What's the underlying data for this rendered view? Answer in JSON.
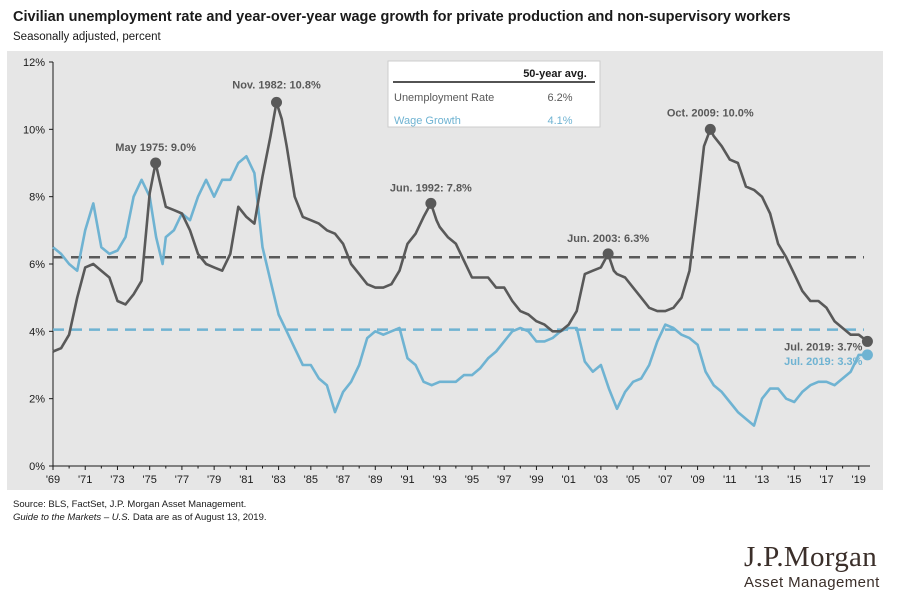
{
  "header": {
    "title": "Civilian unemployment rate and year-over-year wage growth for private production and non-supervisory workers",
    "subtitle": "Seasonally adjusted, percent"
  },
  "footer": {
    "source": "Source: BLS, FactSet, J.P. Morgan Asset Management.",
    "guide_italic": "Guide to the Markets – U.S.",
    "guide_rest": " Data are as of August 13, 2019."
  },
  "logo": {
    "line1": "J.P.Morgan",
    "line2": "Asset Management"
  },
  "colors": {
    "unemployment": "#595959",
    "wage": "#6fb3d2",
    "background": "#e6e6e6"
  },
  "chart_data": {
    "type": "line",
    "ylim": [
      0,
      12
    ],
    "xlim": [
      1969.0,
      2019.7
    ],
    "yticks": [
      "0%",
      "2%",
      "4%",
      "6%",
      "8%",
      "10%",
      "12%"
    ],
    "xticks": [
      "'69",
      "'71",
      "'73",
      "'75",
      "'77",
      "'79",
      "'81",
      "'83",
      "'85",
      "'87",
      "'89",
      "'91",
      "'93",
      "'95",
      "'97",
      "'99",
      "'01",
      "'03",
      "'05",
      "'07",
      "'09",
      "'11",
      "'13",
      "'15",
      "'17",
      "'19"
    ],
    "legend": {
      "header": "50-year avg.",
      "rows": [
        {
          "label": "Unemployment Rate",
          "value": "6.2%"
        },
        {
          "label": "Wage Growth",
          "value": "4.1%"
        }
      ]
    },
    "averages": {
      "unemployment": 6.2,
      "wage": 4.05
    },
    "annotations": [
      {
        "label": "May 1975: 9.0%",
        "x": 1975.37,
        "y": 9.0,
        "series": "unemployment"
      },
      {
        "label": "Nov. 1982: 10.8%",
        "x": 1982.87,
        "y": 10.8,
        "series": "unemployment"
      },
      {
        "label": "Jun. 1992: 7.8%",
        "x": 1992.45,
        "y": 7.8,
        "series": "unemployment"
      },
      {
        "label": "Jun. 2003: 6.3%",
        "x": 2003.45,
        "y": 6.3,
        "series": "unemployment"
      },
      {
        "label": "Oct. 2009: 10.0%",
        "x": 2009.79,
        "y": 10.0,
        "series": "unemployment"
      },
      {
        "label": "Jul. 2019: 3.7%",
        "x": 2019.54,
        "y": 3.7,
        "series": "unemployment"
      },
      {
        "label": "Jul. 2019: 3.3%",
        "x": 2019.54,
        "y": 3.3,
        "series": "wage"
      }
    ],
    "series": [
      {
        "name": "Unemployment Rate",
        "points": [
          [
            1969.0,
            3.4
          ],
          [
            1969.5,
            3.5
          ],
          [
            1970.0,
            3.9
          ],
          [
            1970.5,
            5.0
          ],
          [
            1971.0,
            5.9
          ],
          [
            1971.5,
            6.0
          ],
          [
            1972.0,
            5.8
          ],
          [
            1972.5,
            5.6
          ],
          [
            1973.0,
            4.9
          ],
          [
            1973.5,
            4.8
          ],
          [
            1974.0,
            5.1
          ],
          [
            1974.5,
            5.5
          ],
          [
            1975.0,
            8.1
          ],
          [
            1975.37,
            9.0
          ],
          [
            1975.6,
            8.5
          ],
          [
            1976.0,
            7.7
          ],
          [
            1976.5,
            7.6
          ],
          [
            1977.0,
            7.5
          ],
          [
            1977.5,
            7.0
          ],
          [
            1978.0,
            6.3
          ],
          [
            1978.5,
            6.0
          ],
          [
            1979.0,
            5.9
          ],
          [
            1979.5,
            5.8
          ],
          [
            1980.0,
            6.3
          ],
          [
            1980.5,
            7.7
          ],
          [
            1981.0,
            7.4
          ],
          [
            1981.5,
            7.2
          ],
          [
            1982.0,
            8.6
          ],
          [
            1982.5,
            9.8
          ],
          [
            1982.87,
            10.8
          ],
          [
            1983.2,
            10.3
          ],
          [
            1983.5,
            9.5
          ],
          [
            1984.0,
            8.0
          ],
          [
            1984.5,
            7.4
          ],
          [
            1985.0,
            7.3
          ],
          [
            1985.5,
            7.2
          ],
          [
            1986.0,
            7.0
          ],
          [
            1986.5,
            6.9
          ],
          [
            1987.0,
            6.6
          ],
          [
            1987.5,
            6.0
          ],
          [
            1988.0,
            5.7
          ],
          [
            1988.5,
            5.4
          ],
          [
            1989.0,
            5.3
          ],
          [
            1989.5,
            5.3
          ],
          [
            1990.0,
            5.4
          ],
          [
            1990.5,
            5.8
          ],
          [
            1991.0,
            6.6
          ],
          [
            1991.5,
            6.9
          ],
          [
            1992.0,
            7.4
          ],
          [
            1992.45,
            7.8
          ],
          [
            1992.8,
            7.3
          ],
          [
            1993.0,
            7.1
          ],
          [
            1993.5,
            6.8
          ],
          [
            1994.0,
            6.6
          ],
          [
            1994.5,
            6.1
          ],
          [
            1995.0,
            5.6
          ],
          [
            1995.5,
            5.6
          ],
          [
            1996.0,
            5.6
          ],
          [
            1996.5,
            5.3
          ],
          [
            1997.0,
            5.3
          ],
          [
            1997.5,
            4.9
          ],
          [
            1998.0,
            4.6
          ],
          [
            1998.5,
            4.5
          ],
          [
            1999.0,
            4.3
          ],
          [
            1999.5,
            4.2
          ],
          [
            2000.0,
            4.0
          ],
          [
            2000.5,
            4.0
          ],
          [
            2001.0,
            4.2
          ],
          [
            2001.5,
            4.6
          ],
          [
            2002.0,
            5.7
          ],
          [
            2002.5,
            5.8
          ],
          [
            2003.0,
            5.9
          ],
          [
            2003.45,
            6.3
          ],
          [
            2003.8,
            5.8
          ],
          [
            2004.0,
            5.7
          ],
          [
            2004.5,
            5.6
          ],
          [
            2005.0,
            5.3
          ],
          [
            2005.5,
            5.0
          ],
          [
            2006.0,
            4.7
          ],
          [
            2006.5,
            4.6
          ],
          [
            2007.0,
            4.6
          ],
          [
            2007.5,
            4.7
          ],
          [
            2008.0,
            5.0
          ],
          [
            2008.5,
            5.8
          ],
          [
            2009.0,
            7.8
          ],
          [
            2009.4,
            9.5
          ],
          [
            2009.79,
            10.0
          ],
          [
            2010.0,
            9.8
          ],
          [
            2010.5,
            9.5
          ],
          [
            2011.0,
            9.1
          ],
          [
            2011.5,
            9.0
          ],
          [
            2012.0,
            8.3
          ],
          [
            2012.5,
            8.2
          ],
          [
            2013.0,
            8.0
          ],
          [
            2013.5,
            7.5
          ],
          [
            2014.0,
            6.6
          ],
          [
            2014.5,
            6.2
          ],
          [
            2015.0,
            5.7
          ],
          [
            2015.5,
            5.2
          ],
          [
            2016.0,
            4.9
          ],
          [
            2016.5,
            4.9
          ],
          [
            2017.0,
            4.7
          ],
          [
            2017.5,
            4.3
          ],
          [
            2018.0,
            4.1
          ],
          [
            2018.5,
            3.9
          ],
          [
            2019.0,
            3.9
          ],
          [
            2019.54,
            3.7
          ]
        ]
      },
      {
        "name": "Wage Growth",
        "points": [
          [
            1969.0,
            6.5
          ],
          [
            1969.5,
            6.3
          ],
          [
            1970.0,
            6.0
          ],
          [
            1970.5,
            5.8
          ],
          [
            1971.0,
            7.0
          ],
          [
            1971.5,
            7.8
          ],
          [
            1972.0,
            6.5
          ],
          [
            1972.5,
            6.3
          ],
          [
            1973.0,
            6.4
          ],
          [
            1973.5,
            6.8
          ],
          [
            1974.0,
            8.0
          ],
          [
            1974.5,
            8.5
          ],
          [
            1975.0,
            8.0
          ],
          [
            1975.4,
            6.8
          ],
          [
            1975.8,
            6.0
          ],
          [
            1976.0,
            6.8
          ],
          [
            1976.5,
            7.0
          ],
          [
            1977.0,
            7.5
          ],
          [
            1977.5,
            7.3
          ],
          [
            1978.0,
            8.0
          ],
          [
            1978.5,
            8.5
          ],
          [
            1979.0,
            8.0
          ],
          [
            1979.5,
            8.5
          ],
          [
            1980.0,
            8.5
          ],
          [
            1980.5,
            9.0
          ],
          [
            1981.0,
            9.2
          ],
          [
            1981.5,
            8.7
          ],
          [
            1982.0,
            6.5
          ],
          [
            1982.5,
            5.5
          ],
          [
            1983.0,
            4.5
          ],
          [
            1983.5,
            4.0
          ],
          [
            1984.0,
            3.5
          ],
          [
            1984.5,
            3.0
          ],
          [
            1985.0,
            3.0
          ],
          [
            1985.5,
            2.6
          ],
          [
            1986.0,
            2.4
          ],
          [
            1986.5,
            1.6
          ],
          [
            1987.0,
            2.2
          ],
          [
            1987.5,
            2.5
          ],
          [
            1988.0,
            3.0
          ],
          [
            1988.5,
            3.8
          ],
          [
            1989.0,
            4.0
          ],
          [
            1989.5,
            3.9
          ],
          [
            1990.0,
            4.0
          ],
          [
            1990.5,
            4.1
          ],
          [
            1991.0,
            3.2
          ],
          [
            1991.5,
            3.0
          ],
          [
            1992.0,
            2.5
          ],
          [
            1992.5,
            2.4
          ],
          [
            1993.0,
            2.5
          ],
          [
            1993.5,
            2.5
          ],
          [
            1994.0,
            2.5
          ],
          [
            1994.5,
            2.7
          ],
          [
            1995.0,
            2.7
          ],
          [
            1995.5,
            2.9
          ],
          [
            1996.0,
            3.2
          ],
          [
            1996.5,
            3.4
          ],
          [
            1997.0,
            3.7
          ],
          [
            1997.5,
            4.0
          ],
          [
            1998.0,
            4.1
          ],
          [
            1998.5,
            4.0
          ],
          [
            1999.0,
            3.7
          ],
          [
            1999.5,
            3.7
          ],
          [
            2000.0,
            3.8
          ],
          [
            2000.5,
            4.0
          ],
          [
            2001.0,
            4.1
          ],
          [
            2001.5,
            4.1
          ],
          [
            2002.0,
            3.1
          ],
          [
            2002.5,
            2.8
          ],
          [
            2003.0,
            3.0
          ],
          [
            2003.5,
            2.3
          ],
          [
            2004.0,
            1.7
          ],
          [
            2004.5,
            2.2
          ],
          [
            2005.0,
            2.5
          ],
          [
            2005.5,
            2.6
          ],
          [
            2006.0,
            3.0
          ],
          [
            2006.5,
            3.7
          ],
          [
            2007.0,
            4.2
          ],
          [
            2007.5,
            4.1
          ],
          [
            2008.0,
            3.9
          ],
          [
            2008.5,
            3.8
          ],
          [
            2009.0,
            3.6
          ],
          [
            2009.5,
            2.8
          ],
          [
            2010.0,
            2.4
          ],
          [
            2010.5,
            2.2
          ],
          [
            2011.0,
            1.9
          ],
          [
            2011.5,
            1.6
          ],
          [
            2012.0,
            1.4
          ],
          [
            2012.5,
            1.2
          ],
          [
            2013.0,
            2.0
          ],
          [
            2013.5,
            2.3
          ],
          [
            2014.0,
            2.3
          ],
          [
            2014.5,
            2.0
          ],
          [
            2015.0,
            1.9
          ],
          [
            2015.5,
            2.2
          ],
          [
            2016.0,
            2.4
          ],
          [
            2016.5,
            2.5
          ],
          [
            2017.0,
            2.5
          ],
          [
            2017.5,
            2.4
          ],
          [
            2018.0,
            2.6
          ],
          [
            2018.5,
            2.8
          ],
          [
            2019.0,
            3.3
          ],
          [
            2019.54,
            3.3
          ]
        ]
      }
    ]
  }
}
